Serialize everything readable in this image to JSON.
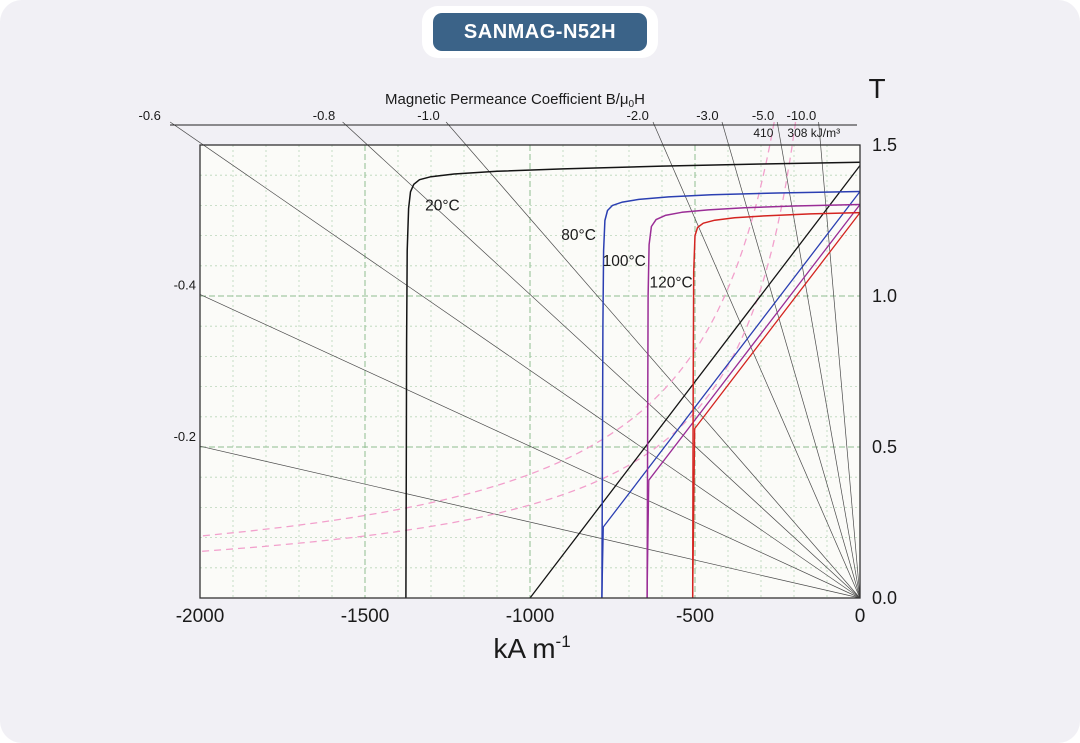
{
  "page": {
    "background": "#f1f0f5",
    "badge": {
      "label": "SANMAG-N52H",
      "bg": "#3b6388",
      "text_color": "#ffffff"
    }
  },
  "chart_data": {
    "type": "line",
    "plot_bg": "#fbfbf8",
    "frame_color": "#333333",
    "mu0_T_per_kAm": 0.0012566,
    "top_axis": {
      "label_prefix": "Magnetic Permeance Coefficient B/μ",
      "label_sub": "0",
      "label_suffix": "H"
    },
    "x_axis": {
      "label_main": "kA m",
      "label_sup": "-1",
      "range": [
        -2000,
        0
      ],
      "tick_values": [
        -2000,
        -1500,
        -1000,
        -500,
        0
      ],
      "tick_labels": [
        "-2000",
        "-1500",
        "-1000",
        "-500",
        "0"
      ]
    },
    "y_axis": {
      "label": "T",
      "side": "right",
      "range": [
        0,
        1.5
      ],
      "tick_values": [
        0,
        0.5,
        1,
        1.5
      ],
      "tick_labels": [
        "0.0",
        "0.5",
        "1.0",
        "1.5"
      ]
    },
    "grid": {
      "minor": {
        "x_step": 100,
        "y_step": 0.1,
        "color": "#b9d6b9"
      },
      "major": {
        "x_step": 500,
        "y_step": 0.5,
        "color": "#8fbe8f"
      }
    },
    "permeance_lines": {
      "color": "#4a4a4a",
      "items": [
        {
          "pc": 0.2,
          "label": "-0.2",
          "exit": "left"
        },
        {
          "pc": 0.4,
          "label": "-0.4",
          "exit": "left"
        },
        {
          "pc": 0.6,
          "label": "-0.6",
          "exit": "top"
        },
        {
          "pc": 0.8,
          "label": "-0.8",
          "exit": "top"
        },
        {
          "pc": 1.0,
          "label": "-1.0",
          "exit": "top"
        },
        {
          "pc": 2.0,
          "label": "-2.0",
          "exit": "top"
        },
        {
          "pc": 3.0,
          "label": "-3.0",
          "exit": "top"
        },
        {
          "pc": 5.0,
          "label": "-5.0",
          "exit": "top"
        },
        {
          "pc": 10.0,
          "label": "-10.0",
          "exit": "top"
        }
      ]
    },
    "energy_product_contours": {
      "color": "#f2a0cc",
      "items": [
        {
          "value": 410,
          "label": "410"
        },
        {
          "value": 308,
          "label": "308 kJ/m³"
        }
      ]
    },
    "series": [
      {
        "name": "20C",
        "color": "#141414",
        "label": {
          "text": "20°C",
          "h": -1318,
          "b": 1.283
        },
        "intrinsic": [
          [
            0,
            1.443
          ],
          [
            -300,
            1.437
          ],
          [
            -600,
            1.43
          ],
          [
            -900,
            1.421
          ],
          [
            -1100,
            1.413
          ],
          [
            -1230,
            1.404
          ],
          [
            -1300,
            1.395
          ],
          [
            -1335,
            1.385
          ],
          [
            -1352,
            1.37
          ],
          [
            -1362,
            1.345
          ],
          [
            -1368,
            1.29
          ],
          [
            -1372,
            1.15
          ],
          [
            -1374,
            0.85
          ],
          [
            -1375,
            0.45
          ],
          [
            -1376,
            0
          ]
        ],
        "normal": [
          [
            0,
            1.432
          ],
          [
            -1000,
            0
          ]
        ]
      },
      {
        "name": "80C",
        "color": "#2b3fb2",
        "label": {
          "text": "80°C",
          "h": -905,
          "b": 1.186
        },
        "intrinsic": [
          [
            0,
            1.346
          ],
          [
            -250,
            1.341
          ],
          [
            -450,
            1.335
          ],
          [
            -580,
            1.328
          ],
          [
            -670,
            1.32
          ],
          [
            -720,
            1.311
          ],
          [
            -750,
            1.3
          ],
          [
            -765,
            1.283
          ],
          [
            -773,
            1.25
          ],
          [
            -777,
            1.15
          ],
          [
            -779,
            0.9
          ],
          [
            -780.5,
            0.45
          ],
          [
            -782,
            0
          ]
        ],
        "normal": [
          [
            0,
            1.346
          ],
          [
            -778,
            0.235
          ],
          [
            -782,
            0
          ]
        ]
      },
      {
        "name": "100C",
        "color": "#9a2d96",
        "label": {
          "text": "100°C",
          "h": -780,
          "b": 1.1
        },
        "intrinsic": [
          [
            0,
            1.303
          ],
          [
            -200,
            1.298
          ],
          [
            -350,
            1.292
          ],
          [
            -460,
            1.285
          ],
          [
            -540,
            1.277
          ],
          [
            -590,
            1.267
          ],
          [
            -618,
            1.253
          ],
          [
            -632,
            1.23
          ],
          [
            -639,
            1.17
          ],
          [
            -642,
            1.0
          ],
          [
            -643.5,
            0.5
          ],
          [
            -645,
            0
          ]
        ],
        "normal": [
          [
            0,
            1.303
          ],
          [
            -640,
            0.39
          ],
          [
            -645,
            0
          ]
        ]
      },
      {
        "name": "120C",
        "color": "#d42420",
        "label": {
          "text": "120°C",
          "h": -638,
          "b": 1.028
        },
        "intrinsic": [
          [
            0,
            1.276
          ],
          [
            -150,
            1.272
          ],
          [
            -280,
            1.266
          ],
          [
            -380,
            1.259
          ],
          [
            -440,
            1.251
          ],
          [
            -475,
            1.241
          ],
          [
            -492,
            1.227
          ],
          [
            -500,
            1.2
          ],
          [
            -504,
            1.08
          ],
          [
            -505.5,
            0.7
          ],
          [
            -506.5,
            0.3
          ],
          [
            -507,
            0
          ]
        ],
        "normal": [
          [
            0,
            1.276
          ],
          [
            -501,
            0.561
          ],
          [
            -507,
            0
          ]
        ]
      }
    ]
  }
}
